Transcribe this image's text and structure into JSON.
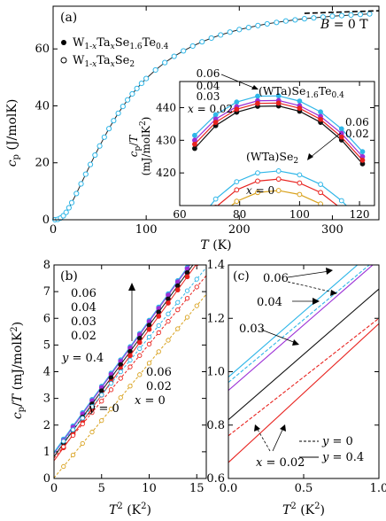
{
  "colors": {
    "x0": "#d9a21e",
    "x002": "#e8231f",
    "x003": "#111111",
    "x004": "#9b2fd6",
    "x006": "#2fb6e8"
  },
  "chart_data": [
    {
      "id": "a",
      "type": "scatter",
      "panel_label": "(a)",
      "xlabel": "T (K)",
      "ylabel": "cp (J/molK)",
      "xlim": [
        0,
        350
      ],
      "ylim": [
        0,
        75
      ],
      "xticks": [
        "0",
        "100",
        "200",
        "300"
      ],
      "yticks": [
        "0",
        "20",
        "40",
        "60"
      ],
      "annotation": "B = 0 T",
      "legend": [
        {
          "marker": "filled-circle",
          "text": "W1-xTaxSe1.6Te0.4"
        },
        {
          "marker": "open-circle",
          "text": "W1-xTaxSe2"
        }
      ],
      "series": [
        {
          "name": "cp data",
          "x": [
            2,
            5,
            8,
            11,
            14,
            17,
            20,
            25,
            30,
            35,
            40,
            45,
            50,
            55,
            60,
            65,
            70,
            75,
            80,
            85,
            90,
            95,
            100,
            110,
            120,
            130,
            140,
            150,
            160,
            170,
            180,
            190,
            200,
            210,
            220,
            230,
            240,
            250,
            260,
            270,
            280,
            290,
            300,
            310,
            320,
            330,
            340
          ],
          "y": [
            0.02,
            0.15,
            0.6,
            1.4,
            2.6,
            4.2,
            6.0,
            9.2,
            12.6,
            16.0,
            19.4,
            22.7,
            25.9,
            29.0,
            32.0,
            34.8,
            37.4,
            39.8,
            42.1,
            44.2,
            46.1,
            47.9,
            49.6,
            52.6,
            55.2,
            57.4,
            59.3,
            61.0,
            62.5,
            63.8,
            64.9,
            65.9,
            66.8,
            67.5,
            68.2,
            68.8,
            69.3,
            69.8,
            70.2,
            70.6,
            70.9,
            71.2,
            71.5,
            71.7,
            71.9,
            72.1,
            72.3
          ]
        },
        {
          "name": "Dulong-Petit limit",
          "x": [
            270,
            350
          ],
          "y": [
            72.5,
            73.4
          ]
        }
      ]
    },
    {
      "id": "a-inset",
      "type": "line",
      "xlabel": "",
      "ylabel": "cp/T (mJ/molK2)",
      "xlim": [
        60,
        125
      ],
      "ylim": [
        410,
        448
      ],
      "xticks": [
        "60",
        "80",
        "100",
        "120"
      ],
      "yticks": [
        "420",
        "430",
        "440"
      ],
      "labels": [
        "(WTa)Se1.6Te0.4",
        "(WTa)Se2"
      ],
      "x_left_labels": [
        "0.06",
        "0.04",
        "0.03",
        "x = 0.02"
      ],
      "x_right_labels": [
        "0.06",
        "0.02"
      ],
      "label_x0": "x = 0",
      "series": [
        {
          "name": "SeTe 0.06",
          "x": [
            65,
            72,
            79,
            86,
            93,
            100,
            107,
            114,
            121
          ],
          "y": [
            431.5,
            437.8,
            441.7,
            443.5,
            443.6,
            442.0,
            438.7,
            433.5,
            426.5
          ]
        },
        {
          "name": "SeTe 0.04",
          "x": [
            65,
            72,
            79,
            86,
            93,
            100,
            107,
            114,
            121
          ],
          "y": [
            430.0,
            436.5,
            440.3,
            442.1,
            442.2,
            440.6,
            437.3,
            432.1,
            425.0
          ]
        },
        {
          "name": "SeTe 0.03",
          "x": [
            65,
            72,
            79,
            86,
            93,
            100,
            107,
            114,
            121
          ],
          "y": [
            427.5,
            434.5,
            438.6,
            440.4,
            440.5,
            438.9,
            435.5,
            430.1,
            422.8
          ]
        },
        {
          "name": "SeTe 0.02",
          "x": [
            65,
            72,
            79,
            86,
            93,
            100,
            107,
            114,
            121
          ],
          "y": [
            428.8,
            435.5,
            439.5,
            441.3,
            441.4,
            439.8,
            436.4,
            431.0,
            423.9
          ]
        },
        {
          "name": "Se2 0.06",
          "x": [
            65,
            72,
            79,
            86,
            93,
            100,
            107,
            114,
            121
          ],
          "y": [
            404.0,
            412.0,
            417.3,
            420.0,
            420.6,
            419.4,
            416.5,
            411.5,
            405.0
          ]
        },
        {
          "name": "Se2 0.02",
          "x": [
            65,
            72,
            79,
            86,
            93,
            100,
            107,
            114,
            121
          ],
          "y": [
            401.5,
            409.5,
            414.8,
            417.5,
            418.1,
            416.9,
            414.0,
            409.0,
            402.5
          ]
        },
        {
          "name": "Se2 0",
          "x": [
            65,
            72,
            79,
            86,
            93,
            100,
            107,
            114,
            121
          ],
          "y": [
            398.0,
            406.0,
            411.3,
            414.0,
            414.6,
            413.4,
            410.5,
            405.5,
            399.0
          ]
        }
      ]
    },
    {
      "id": "b",
      "type": "line",
      "panel_label": "(b)",
      "xlabel": "T2 (K2)",
      "ylabel": "cp/T (mJ/molK2)",
      "xlim": [
        0,
        16
      ],
      "ylim": [
        0,
        8
      ],
      "xticks": [
        "0",
        "5",
        "10",
        "15"
      ],
      "yticks": [
        "0",
        "1",
        "2",
        "3",
        "4",
        "5",
        "6",
        "7",
        "8"
      ],
      "labels_left": [
        "0.06",
        "0.04",
        "0.03",
        "0.02"
      ],
      "labels_right": [
        "0.06",
        "0.02",
        "x = 0"
      ],
      "label_y04": "y = 0.4",
      "label_y0": "y = 0",
      "series": [
        {
          "name": "y=0.4 x=0.06",
          "x": [
            0,
            15
          ],
          "y": [
            0.98,
            8.4
          ]
        },
        {
          "name": "y=0.4 x=0.04",
          "x": [
            0,
            15
          ],
          "y": [
            0.93,
            8.35
          ]
        },
        {
          "name": "y=0.4 x=0.03",
          "x": [
            0,
            15
          ],
          "y": [
            0.82,
            8.2
          ]
        },
        {
          "name": "y=0.4 x=0.02",
          "x": [
            0,
            15
          ],
          "y": [
            0.66,
            8.05
          ]
        },
        {
          "name": "y=0 x=0.06",
          "x": [
            0,
            16
          ],
          "y": [
            0.96,
            7.9
          ]
        },
        {
          "name": "y=0 x=0.02",
          "x": [
            0,
            16
          ],
          "y": [
            0.76,
            7.6
          ]
        },
        {
          "name": "y=0 x=0",
          "x": [
            0,
            16
          ],
          "y": [
            0.02,
            6.9
          ]
        }
      ]
    },
    {
      "id": "c",
      "type": "line",
      "panel_label": "(c)",
      "xlabel": "T2 (K2)",
      "ylabel": "",
      "xlim": [
        0,
        1
      ],
      "ylim": [
        0.6,
        1.4
      ],
      "xticks": [
        "0.0",
        "0.5",
        "1.0"
      ],
      "yticks": [
        "0.6",
        "0.8",
        "1.0",
        "1.2",
        "1.4"
      ],
      "labels": [
        "0.06",
        "0.04",
        "0.03",
        "x = 0.02"
      ],
      "legend": [
        {
          "style": "dashed",
          "text": "y = 0"
        },
        {
          "style": "solid",
          "text": "y = 0.4"
        }
      ],
      "series": [
        {
          "name": "y=0.4 x=0.06",
          "x": [
            0,
            1
          ],
          "y": [
            0.98,
            1.47
          ]
        },
        {
          "name": "y=0 x=0.06",
          "x": [
            0,
            1
          ],
          "y": [
            0.96,
            1.43
          ]
        },
        {
          "name": "y=0.4 x=0.04",
          "x": [
            0,
            1
          ],
          "y": [
            0.93,
            1.42
          ]
        },
        {
          "name": "y=0.4 x=0.03",
          "x": [
            0,
            1
          ],
          "y": [
            0.82,
            1.31
          ]
        },
        {
          "name": "y=0 x=0.02",
          "x": [
            0,
            1
          ],
          "y": [
            0.76,
            1.2
          ]
        },
        {
          "name": "y=0.4 x=0.02",
          "x": [
            0,
            1
          ],
          "y": [
            0.66,
            1.18
          ]
        }
      ]
    }
  ]
}
